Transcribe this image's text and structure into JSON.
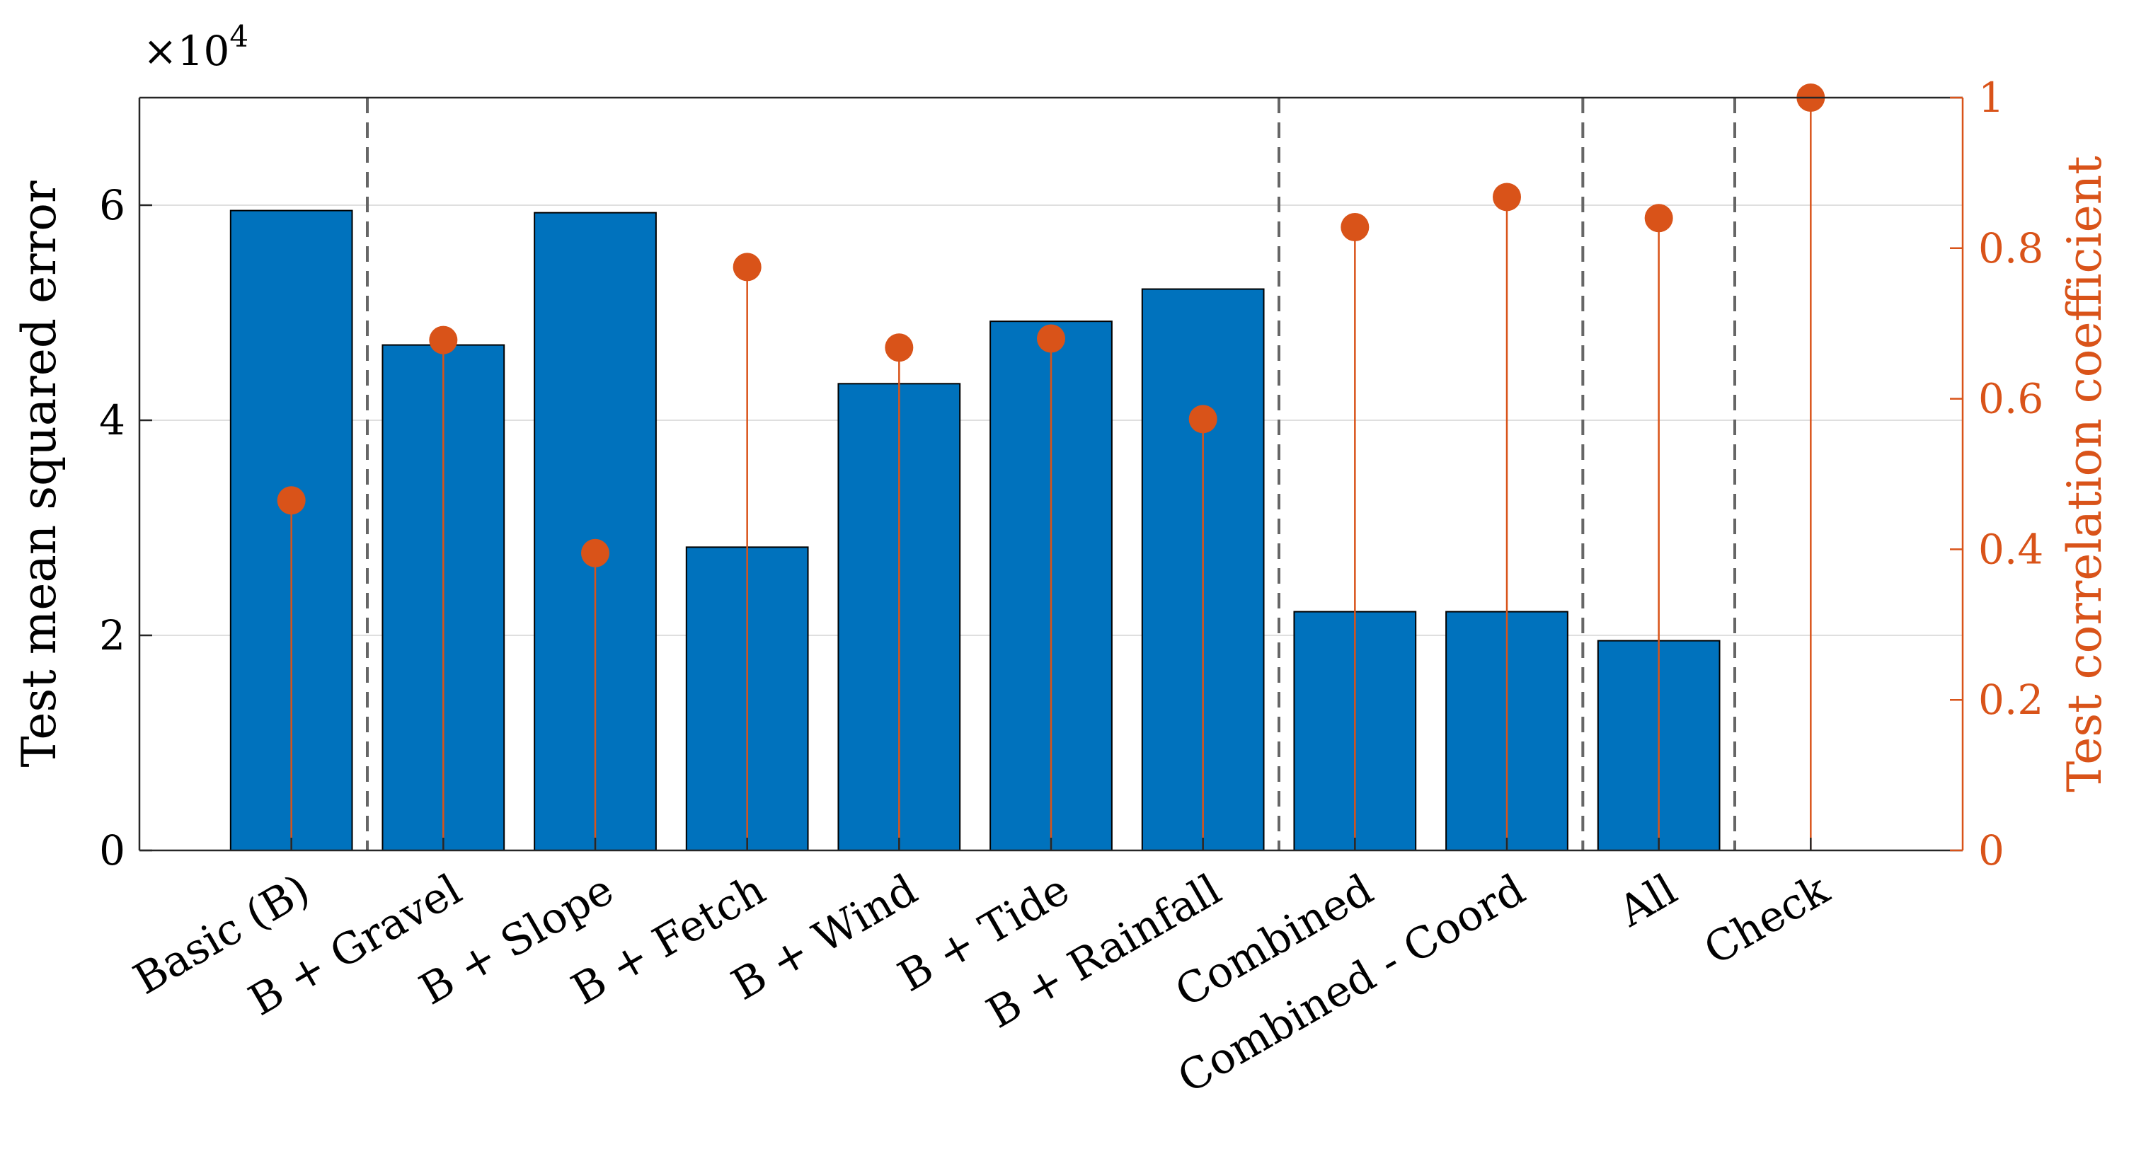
{
  "chart_data": {
    "type": "bar",
    "categories": [
      "Basic (B)",
      "B + Gravel",
      "B + Slope",
      "B + Fetch",
      "B + Wind",
      "B + Tide",
      "B + Rainfall",
      "Combined",
      "Combined - Coord",
      "All",
      "Check"
    ],
    "series": [
      {
        "name": "Test mean squared error",
        "axis": "left",
        "mark": "bar",
        "values": [
          59500,
          47000,
          59300,
          28200,
          43400,
          49200,
          52200,
          22200,
          22200,
          19500,
          0
        ]
      },
      {
        "name": "Test correlation coefficient",
        "axis": "right",
        "mark": "stem",
        "values": [
          0.465,
          0.678,
          0.395,
          0.775,
          0.668,
          0.68,
          0.573,
          0.828,
          0.868,
          0.84,
          1.0
        ]
      }
    ],
    "ylabel_left": "Test mean squared error",
    "ylabel_right": "Test correlation coefficient",
    "ylim_left": [
      0,
      70000
    ],
    "ylim_right": [
      0,
      1
    ],
    "yticks_left": [
      0,
      20000,
      40000,
      60000
    ],
    "yticks_left_labels": [
      "0",
      "2",
      "4",
      "6"
    ],
    "yticks_right": [
      0,
      0.2,
      0.4,
      0.6,
      0.8,
      1
    ],
    "yticks_right_labels": [
      "0",
      "0.2",
      "0.4",
      "0.6",
      "0.8",
      "1"
    ],
    "exponent_label": {
      "base": "×10",
      "power": "4"
    },
    "group_dividers_after": [
      0,
      6,
      8,
      9
    ],
    "grid": true,
    "colors": {
      "bar": "#0072BD",
      "stem": "#D95319",
      "axis": "#262626",
      "grid": "#DFDFDF",
      "divider": "#666666"
    }
  }
}
